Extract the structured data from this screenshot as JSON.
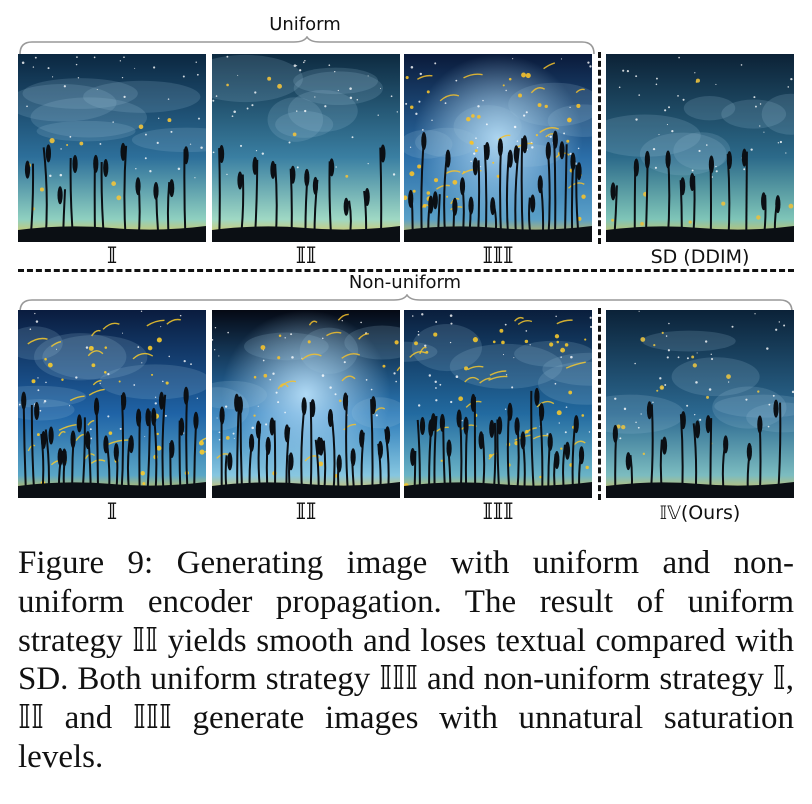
{
  "groups": {
    "uniform_label": "Uniform",
    "non_uniform_label": "Non-uniform"
  },
  "row1": [
    {
      "caption": "𝕀",
      "variant": "a"
    },
    {
      "caption": "𝕀𝕀",
      "variant": "b"
    },
    {
      "caption": "𝕀𝕀𝕀",
      "variant": "c"
    },
    {
      "caption": "SD (DDIM)",
      "variant": "d"
    }
  ],
  "row2": [
    {
      "caption": "𝕀",
      "variant": "e"
    },
    {
      "caption": "𝕀𝕀",
      "variant": "f"
    },
    {
      "caption": "𝕀𝕀𝕀",
      "variant": "g"
    },
    {
      "caption": "𝕀𝕍(Ours)",
      "variant": "h"
    }
  ],
  "figure_caption": {
    "label": "Figure 9:",
    "text": "Generating image with uniform and non-uniform encoder propagation. The result of uniform strategy 𝕀𝕀 yields smooth and loses textual compared with SD. Both uniform strategy 𝕀𝕀𝕀 and non-uniform strategy 𝕀, 𝕀𝕀 and 𝕀𝕀𝕀 generate images with unnatural saturation levels."
  }
}
